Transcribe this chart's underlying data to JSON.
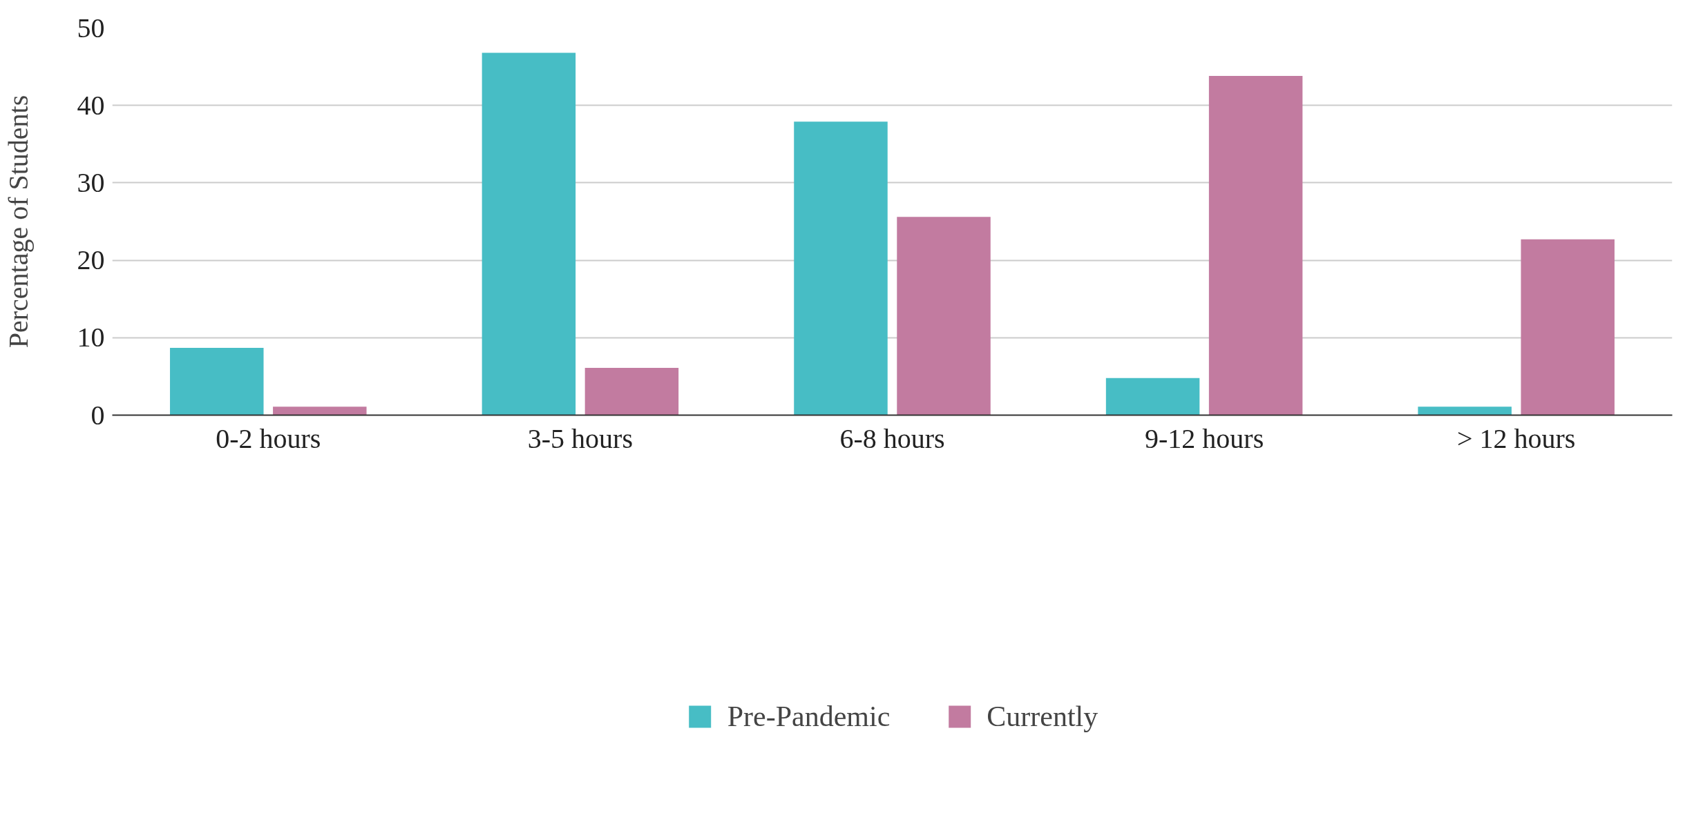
{
  "chart_data": {
    "type": "bar",
    "ylabel": "Percentage of Students",
    "categories": [
      "0-2 hours",
      "3-5 hours",
      "6-8 hours",
      "9-12 hours",
      "> 12 hours"
    ],
    "series": [
      {
        "name": "Pre-Pandemic",
        "color": "#47bdc5",
        "values": [
          8.7,
          46.8,
          37.9,
          4.8,
          1.1
        ]
      },
      {
        "name": "Currently",
        "color": "#c27ba0",
        "values": [
          1.1,
          6.1,
          25.6,
          43.8,
          22.7
        ]
      }
    ],
    "ylim": [
      0,
      50
    ],
    "yticks": [
      0,
      10,
      20,
      30,
      40,
      50
    ],
    "grid": "y",
    "legend": "bottom"
  }
}
